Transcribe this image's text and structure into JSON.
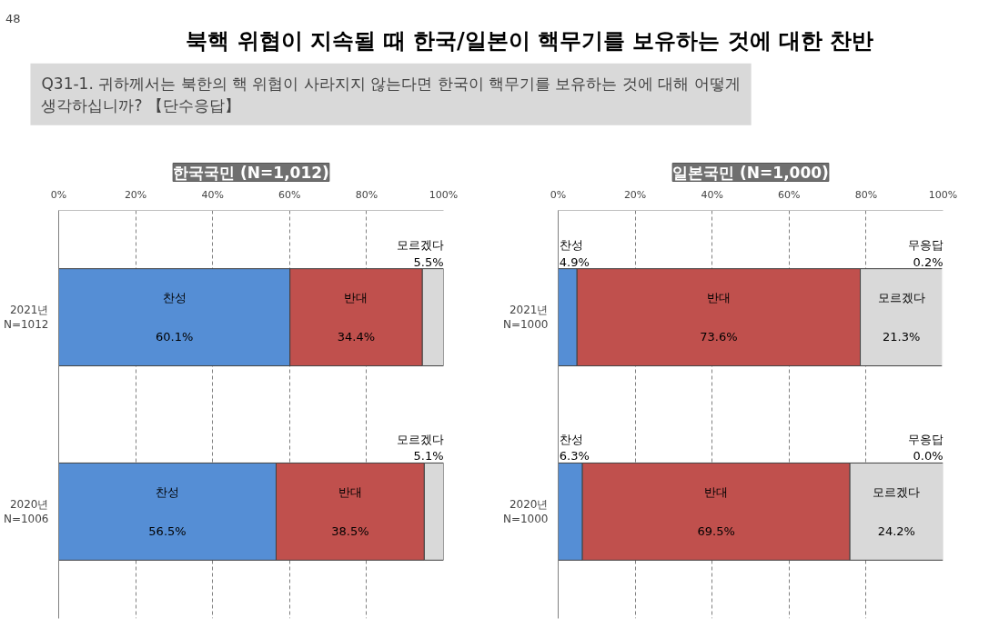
{
  "chart_data": [
    {
      "type": "other",
      "title": "북핵 위협이 지속될 때 한국/일본이 핵무기를 보유하는 것에 대한 찬반",
      "subtitle": "Q31-1. 귀하께서는 북한의 핵 위협이 사라지지 않는다면 한국이 핵무기를 보유하는 것에 대해 어떻게\n      생각하십니까? 【단수응답】",
      "annotations": [
        "48"
      ]
    },
    {
      "type": "bar",
      "title": "한국국민 (N=1,012)",
      "orientation": "horizontal",
      "stacked": true,
      "categories": [
        "2021년\nN=1012",
        "2020년\nN=1006"
      ],
      "series": [
        {
          "name": "찬성",
          "color": "#558ed5",
          "values": [
            60.1,
            56.5
          ],
          "value_labels": [
            "60.1%",
            "56.5%"
          ]
        },
        {
          "name": "반대",
          "color": "#c0504d",
          "values": [
            34.4,
            38.5
          ],
          "value_labels": [
            "34.4%",
            "38.5%"
          ]
        },
        {
          "name": "모르겠다",
          "color": "#d9d9d9",
          "values": [
            5.5,
            5.1
          ],
          "value_labels": [
            "5.5%",
            "5.1%"
          ]
        }
      ],
      "xlim": [
        0,
        100
      ],
      "xticks": [
        {
          "value": 0,
          "label": "0%"
        },
        {
          "value": 20,
          "label": "20%"
        },
        {
          "value": 40,
          "label": "40%"
        },
        {
          "value": 60,
          "label": "60%"
        },
        {
          "value": 80,
          "label": "80%"
        },
        {
          "value": 100,
          "label": "100%"
        }
      ],
      "grid": "x"
    },
    {
      "type": "bar",
      "title": "일본국민 (N=1,000)",
      "orientation": "horizontal",
      "stacked": true,
      "categories": [
        "2021년\nN=1000",
        "2020년\nN=1000"
      ],
      "series": [
        {
          "name": "찬성",
          "color": "#558ed5",
          "values": [
            4.9,
            6.3
          ],
          "value_labels": [
            "4.9%",
            "6.3%"
          ]
        },
        {
          "name": "반대",
          "color": "#c0504d",
          "values": [
            73.6,
            69.5
          ],
          "value_labels": [
            "73.6%",
            "69.5%"
          ]
        },
        {
          "name": "모르겠다",
          "color": "#d9d9d9",
          "values": [
            21.3,
            24.2
          ],
          "value_labels": [
            "21.3%",
            "24.2%"
          ]
        },
        {
          "name": "무응답",
          "color": "#ffffff",
          "values": [
            0.2,
            0.0
          ],
          "value_labels": [
            "0.2%",
            "0.0%"
          ]
        }
      ],
      "xlim": [
        0,
        100
      ],
      "xticks": [
        {
          "value": 0,
          "label": "0%"
        },
        {
          "value": 20,
          "label": "20%"
        },
        {
          "value": 40,
          "label": "40%"
        },
        {
          "value": 60,
          "label": "60%"
        },
        {
          "value": 80,
          "label": "80%"
        },
        {
          "value": 100,
          "label": "100%"
        }
      ],
      "grid": "x"
    }
  ]
}
